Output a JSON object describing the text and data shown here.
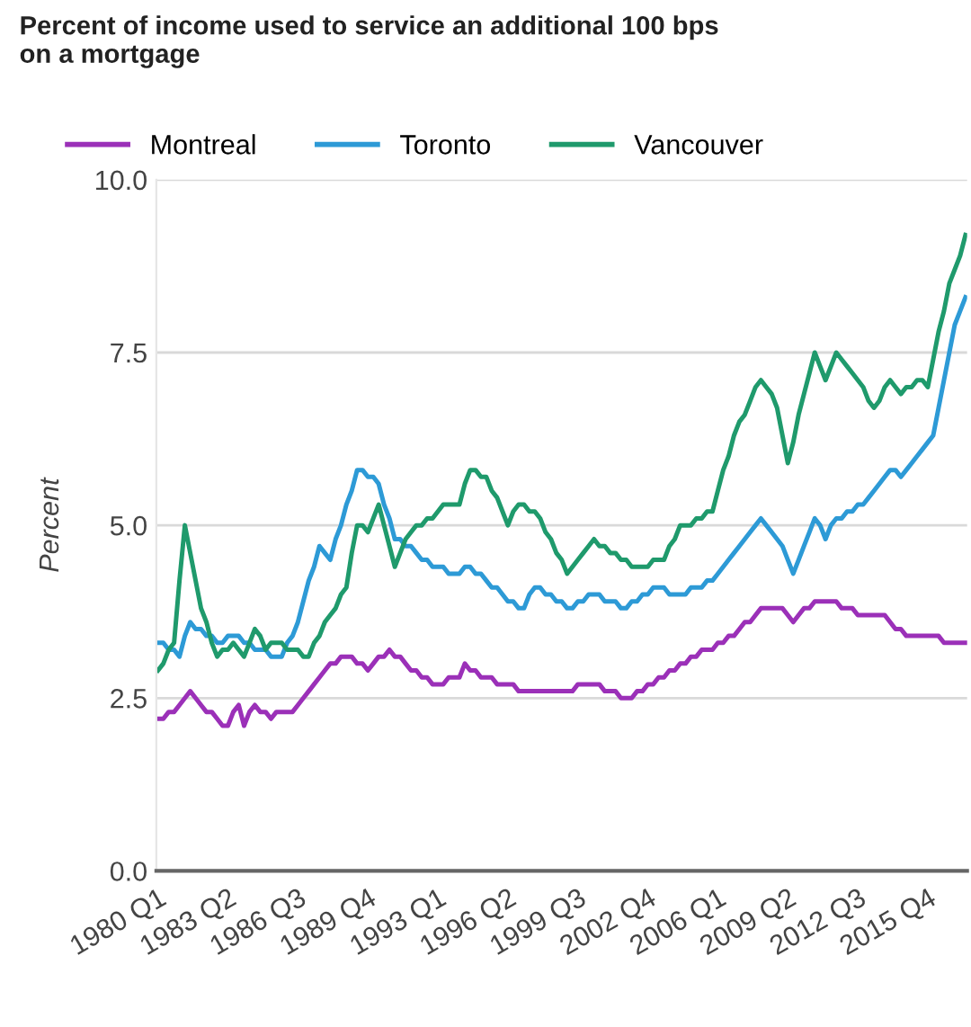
{
  "chart_data": {
    "type": "line",
    "title": "Percent of income used to service an additional 100 bps\non a mortgage",
    "ylabel": "Percent",
    "categories": [
      "1980 Q1",
      null,
      null,
      null,
      null,
      null,
      null,
      null,
      null,
      null,
      null,
      null,
      null,
      "1983 Q2",
      null,
      null,
      null,
      null,
      null,
      null,
      null,
      null,
      null,
      null,
      null,
      null,
      "1986 Q3",
      null,
      null,
      null,
      null,
      null,
      null,
      null,
      null,
      null,
      null,
      null,
      null,
      "1989 Q4",
      null,
      null,
      null,
      null,
      null,
      null,
      null,
      null,
      null,
      null,
      null,
      null,
      "1993 Q1",
      null,
      null,
      null,
      null,
      null,
      null,
      null,
      null,
      null,
      null,
      null,
      null,
      "1996 Q2",
      null,
      null,
      null,
      null,
      null,
      null,
      null,
      null,
      null,
      null,
      null,
      null,
      "1999 Q3",
      null,
      null,
      null,
      null,
      null,
      null,
      null,
      null,
      null,
      null,
      null,
      null,
      "2002 Q4",
      null,
      null,
      null,
      null,
      null,
      null,
      null,
      null,
      null,
      null,
      null,
      null,
      "2006 Q1",
      null,
      null,
      null,
      null,
      null,
      null,
      null,
      null,
      null,
      null,
      null,
      null,
      "2009 Q2",
      null,
      null,
      null,
      null,
      null,
      null,
      null,
      null,
      null,
      null,
      null,
      null,
      "2012 Q3",
      null,
      null,
      null,
      null,
      null,
      null,
      null,
      null,
      null,
      null,
      null,
      null,
      "2015 Q4",
      null,
      null,
      null,
      null,
      null,
      null,
      null
    ],
    "ylim": [
      0,
      10
    ],
    "yticks": [
      {
        "value": 0,
        "label": "0.0"
      },
      {
        "value": 2.5,
        "label": "2.5"
      },
      {
        "value": 5,
        "label": "5.0"
      },
      {
        "value": 7.5,
        "label": "7.5"
      },
      {
        "value": 10,
        "label": "10.0"
      }
    ],
    "grid": "y",
    "legend": "top left",
    "marker": "none",
    "line_style": "solid",
    "series": [
      {
        "name": "Montreal",
        "color": "#9b30b8",
        "values": [
          2.2,
          2.2,
          2.3,
          2.3,
          2.4,
          2.5,
          2.6,
          2.5,
          2.4,
          2.3,
          2.3,
          2.2,
          2.1,
          2.1,
          2.3,
          2.4,
          2.1,
          2.3,
          2.4,
          2.3,
          2.3,
          2.2,
          2.3,
          2.3,
          2.3,
          2.3,
          2.4,
          2.5,
          2.6,
          2.7,
          2.8,
          2.9,
          3.0,
          3.0,
          3.1,
          3.1,
          3.1,
          3.0,
          3.0,
          2.9,
          3.0,
          3.1,
          3.1,
          3.2,
          3.1,
          3.1,
          3.0,
          2.9,
          2.9,
          2.8,
          2.8,
          2.7,
          2.7,
          2.7,
          2.8,
          2.8,
          2.8,
          3.0,
          2.9,
          2.9,
          2.8,
          2.8,
          2.8,
          2.7,
          2.7,
          2.7,
          2.7,
          2.6,
          2.6,
          2.6,
          2.6,
          2.6,
          2.6,
          2.6,
          2.6,
          2.6,
          2.6,
          2.6,
          2.7,
          2.7,
          2.7,
          2.7,
          2.7,
          2.6,
          2.6,
          2.6,
          2.5,
          2.5,
          2.5,
          2.6,
          2.6,
          2.7,
          2.7,
          2.8,
          2.8,
          2.9,
          2.9,
          3.0,
          3.0,
          3.1,
          3.1,
          3.2,
          3.2,
          3.2,
          3.3,
          3.3,
          3.4,
          3.4,
          3.5,
          3.6,
          3.6,
          3.7,
          3.8,
          3.8,
          3.8,
          3.8,
          3.8,
          3.7,
          3.6,
          3.7,
          3.8,
          3.8,
          3.9,
          3.9,
          3.9,
          3.9,
          3.9,
          3.8,
          3.8,
          3.8,
          3.7,
          3.7,
          3.7,
          3.7,
          3.7,
          3.7,
          3.6,
          3.5,
          3.5,
          3.4,
          3.4,
          3.4,
          3.4,
          3.4,
          3.4,
          3.4,
          3.3,
          3.3,
          3.3,
          3.3,
          3.3
        ]
      },
      {
        "name": "Toronto",
        "color": "#2d9ad6",
        "values": [
          3.3,
          3.3,
          3.2,
          3.2,
          3.1,
          3.4,
          3.6,
          3.5,
          3.5,
          3.4,
          3.4,
          3.3,
          3.3,
          3.4,
          3.4,
          3.4,
          3.3,
          3.3,
          3.2,
          3.2,
          3.2,
          3.1,
          3.1,
          3.1,
          3.3,
          3.4,
          3.6,
          3.9,
          4.2,
          4.4,
          4.7,
          4.6,
          4.5,
          4.8,
          5.0,
          5.3,
          5.5,
          5.8,
          5.8,
          5.7,
          5.7,
          5.6,
          5.3,
          5.1,
          4.8,
          4.8,
          4.7,
          4.7,
          4.6,
          4.5,
          4.5,
          4.4,
          4.4,
          4.4,
          4.3,
          4.3,
          4.3,
          4.4,
          4.4,
          4.3,
          4.3,
          4.2,
          4.1,
          4.1,
          4.0,
          3.9,
          3.9,
          3.8,
          3.8,
          4.0,
          4.1,
          4.1,
          4.0,
          4.0,
          3.9,
          3.9,
          3.8,
          3.8,
          3.9,
          3.9,
          4.0,
          4.0,
          4.0,
          3.9,
          3.9,
          3.9,
          3.8,
          3.8,
          3.9,
          3.9,
          4.0,
          4.0,
          4.1,
          4.1,
          4.1,
          4.0,
          4.0,
          4.0,
          4.0,
          4.1,
          4.1,
          4.1,
          4.2,
          4.2,
          4.3,
          4.4,
          4.5,
          4.6,
          4.7,
          4.8,
          4.9,
          5.0,
          5.1,
          5.0,
          4.9,
          4.8,
          4.7,
          4.5,
          4.3,
          4.5,
          4.7,
          4.9,
          5.1,
          5.0,
          4.8,
          5.0,
          5.1,
          5.1,
          5.2,
          5.2,
          5.3,
          5.3,
          5.4,
          5.5,
          5.6,
          5.7,
          5.8,
          5.8,
          5.7,
          5.8,
          5.9,
          6.0,
          6.1,
          6.2,
          6.3,
          6.7,
          7.1,
          7.5,
          7.9,
          8.1,
          8.3
        ]
      },
      {
        "name": "Vancouver",
        "color": "#1f9a6c",
        "values": [
          2.9,
          3.0,
          3.2,
          3.3,
          4.2,
          5.0,
          4.6,
          4.2,
          3.8,
          3.6,
          3.3,
          3.1,
          3.2,
          3.2,
          3.3,
          3.2,
          3.1,
          3.3,
          3.5,
          3.4,
          3.2,
          3.3,
          3.3,
          3.3,
          3.2,
          3.2,
          3.2,
          3.1,
          3.1,
          3.3,
          3.4,
          3.6,
          3.7,
          3.8,
          4.0,
          4.1,
          4.6,
          5.0,
          5.0,
          4.9,
          5.1,
          5.3,
          5.0,
          4.7,
          4.4,
          4.6,
          4.8,
          4.9,
          5.0,
          5.0,
          5.1,
          5.1,
          5.2,
          5.3,
          5.3,
          5.3,
          5.3,
          5.6,
          5.8,
          5.8,
          5.7,
          5.7,
          5.5,
          5.4,
          5.2,
          5.0,
          5.2,
          5.3,
          5.3,
          5.2,
          5.2,
          5.1,
          4.9,
          4.8,
          4.6,
          4.5,
          4.3,
          4.4,
          4.5,
          4.6,
          4.7,
          4.8,
          4.7,
          4.7,
          4.6,
          4.6,
          4.5,
          4.5,
          4.4,
          4.4,
          4.4,
          4.4,
          4.5,
          4.5,
          4.5,
          4.7,
          4.8,
          5.0,
          5.0,
          5.0,
          5.1,
          5.1,
          5.2,
          5.2,
          5.5,
          5.8,
          6.0,
          6.3,
          6.5,
          6.6,
          6.8,
          7.0,
          7.1,
          7.0,
          6.9,
          6.7,
          6.3,
          5.9,
          6.2,
          6.6,
          6.9,
          7.2,
          7.5,
          7.3,
          7.1,
          7.3,
          7.5,
          7.4,
          7.3,
          7.2,
          7.1,
          7.0,
          6.8,
          6.7,
          6.8,
          7.0,
          7.1,
          7.0,
          6.9,
          7.0,
          7.0,
          7.1,
          7.1,
          7.0,
          7.4,
          7.8,
          8.1,
          8.5,
          8.7,
          8.9,
          9.2
        ]
      }
    ]
  }
}
